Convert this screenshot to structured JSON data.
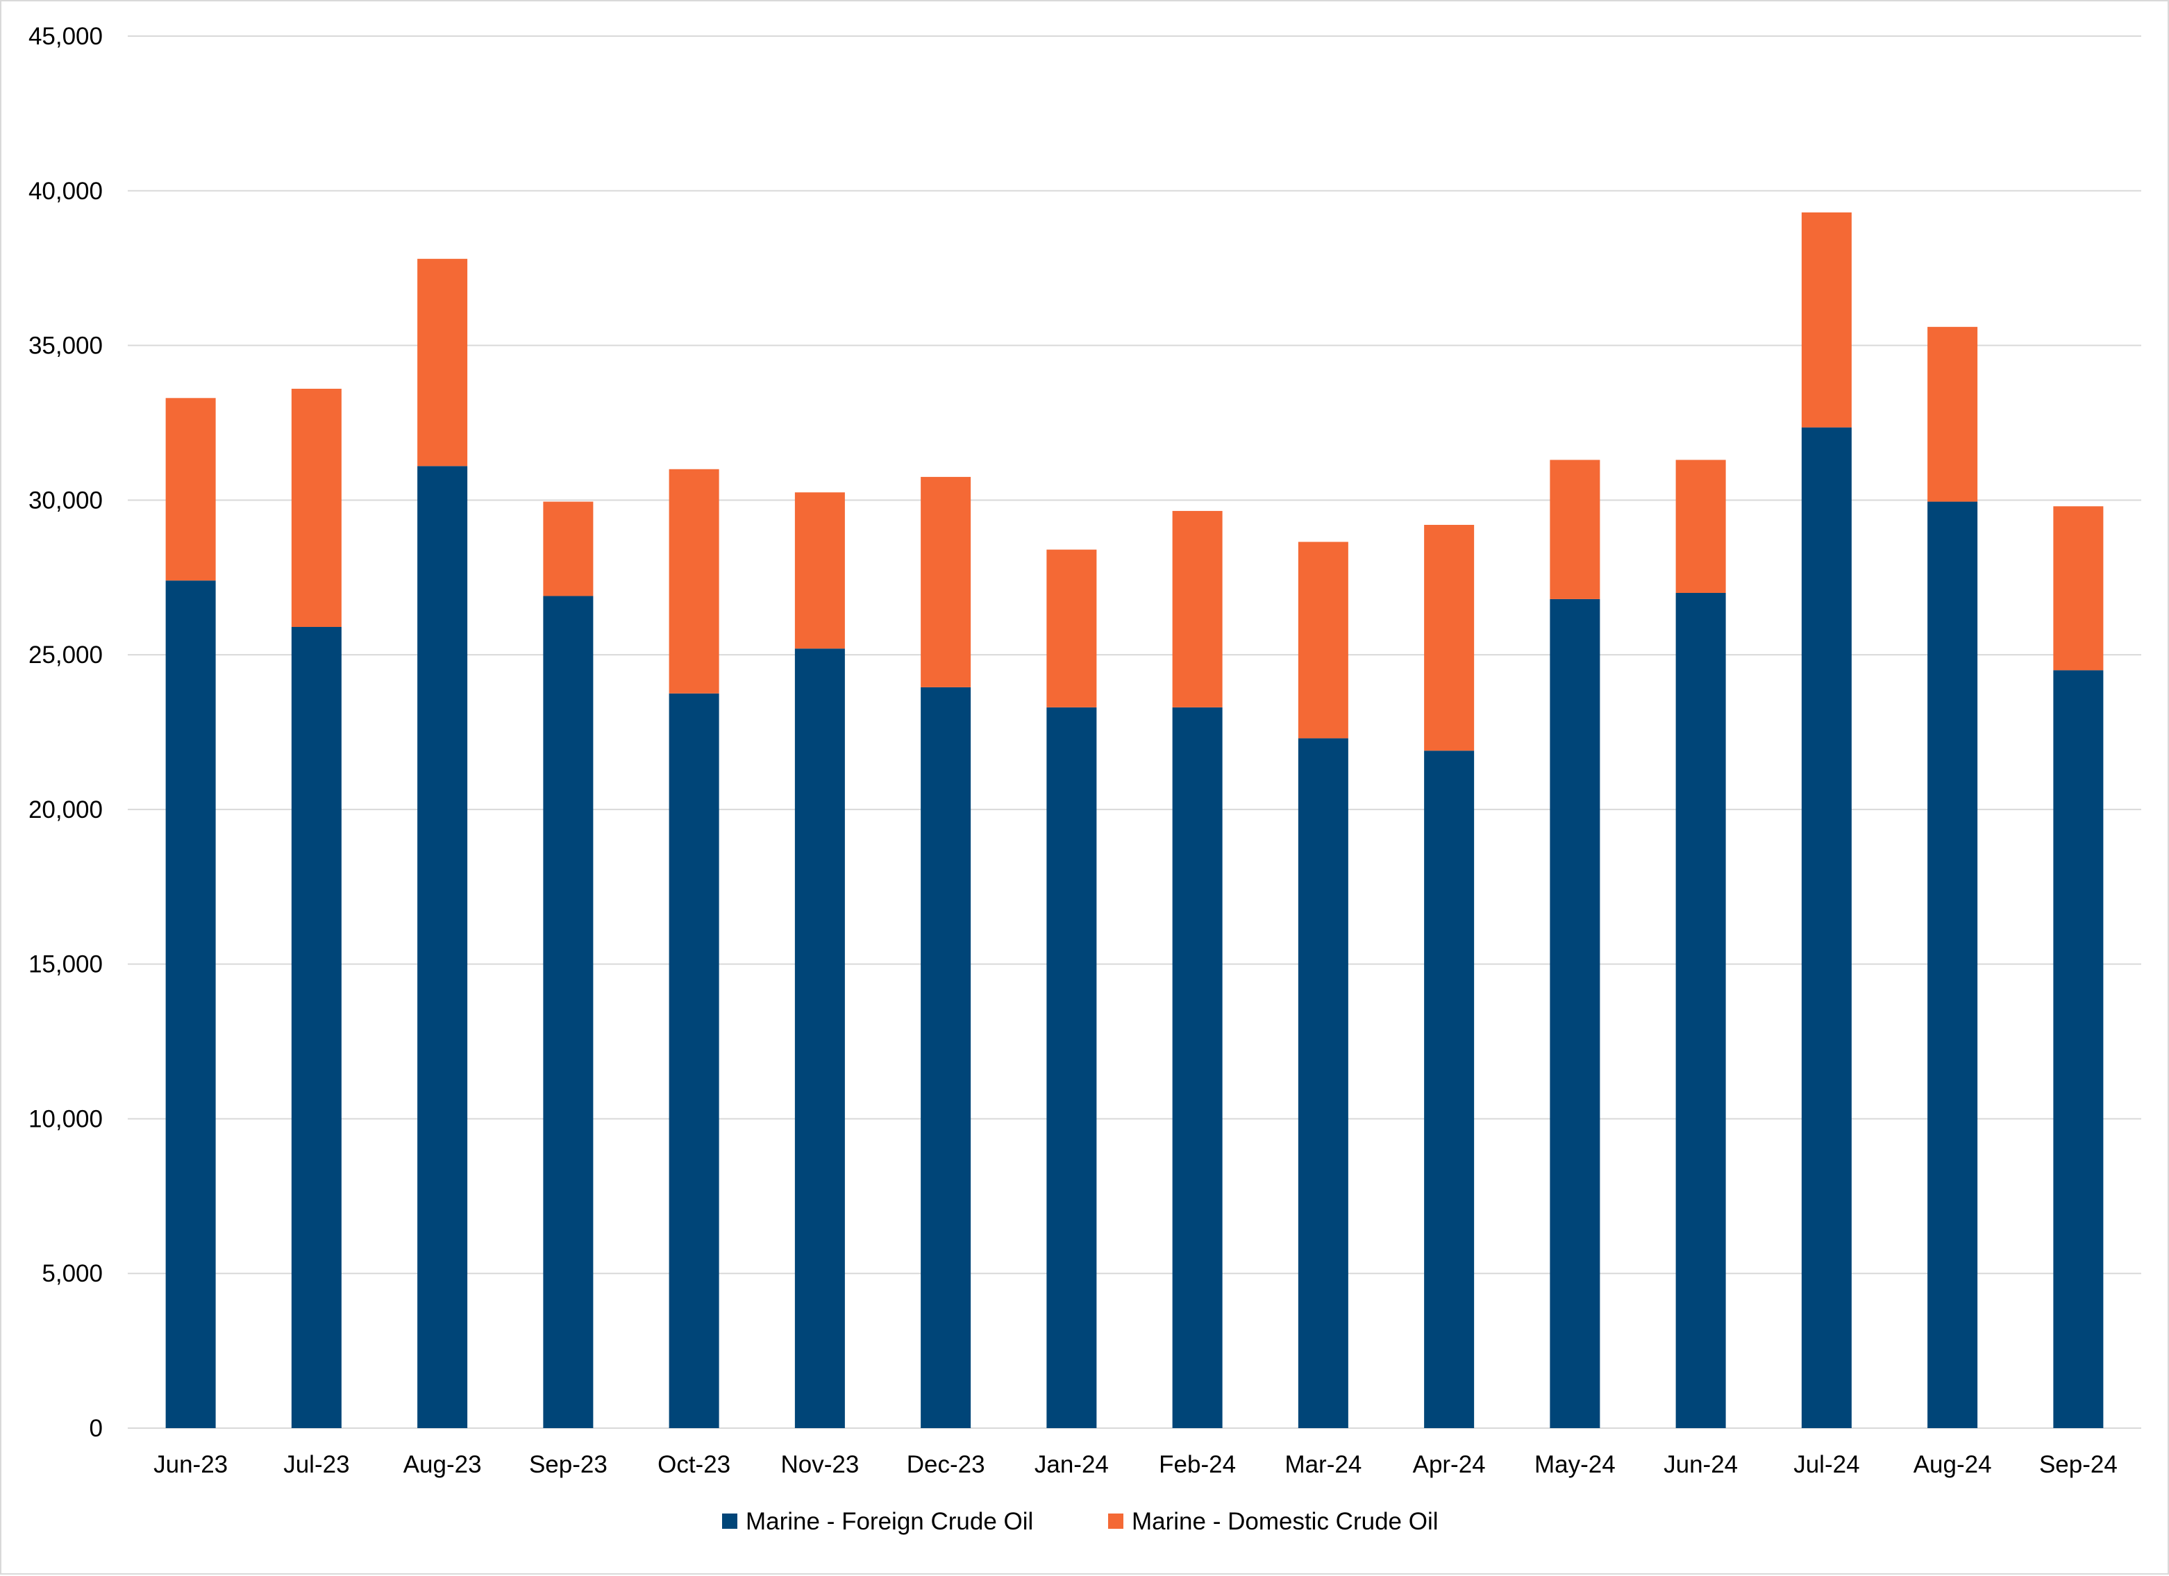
{
  "chart_data": {
    "type": "bar",
    "stacked": true,
    "title": "",
    "xlabel": "",
    "ylabel": "",
    "categories": [
      "Jun-23",
      "Jul-23",
      "Aug-23",
      "Sep-23",
      "Oct-23",
      "Nov-23",
      "Dec-23",
      "Jan-24",
      "Feb-24",
      "Mar-24",
      "Apr-24",
      "May-24",
      "Jun-24",
      "Jul-24",
      "Aug-24",
      "Sep-24"
    ],
    "series": [
      {
        "name": "Marine - Foreign Crude Oil",
        "color": "#004578",
        "values": [
          27400,
          25900,
          31100,
          26900,
          23750,
          25200,
          23950,
          23300,
          23300,
          22300,
          21900,
          26800,
          27000,
          32350,
          29950,
          24500
        ]
      },
      {
        "name": "Marine - Domestic Crude Oil",
        "color": "#F46935",
        "values": [
          5900,
          7700,
          6700,
          3050,
          7250,
          5050,
          6800,
          5100,
          6350,
          6350,
          7300,
          4500,
          4300,
          6950,
          5650,
          5300
        ]
      }
    ],
    "ylim": [
      0,
      45000
    ],
    "yticks": [
      0,
      5000,
      10000,
      15000,
      20000,
      25000,
      30000,
      35000,
      40000,
      45000
    ],
    "ytick_labels": [
      "0",
      "5,000",
      "10,000",
      "15,000",
      "20,000",
      "25,000",
      "30,000",
      "35,000",
      "40,000",
      "45,000"
    ],
    "grid": true,
    "gridline_color": "#d9d9d9",
    "legend_position": "bottom-center"
  }
}
